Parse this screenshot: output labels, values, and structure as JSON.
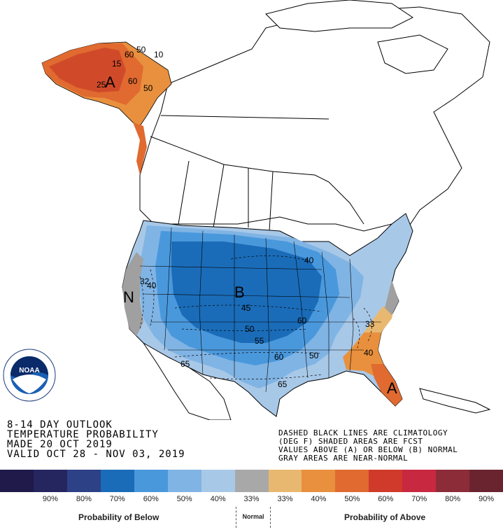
{
  "map": {
    "above_label": "A",
    "below_label": "B",
    "normal_label": "N",
    "colors": {
      "above_33": "#e8b870",
      "above_40": "#e8903e",
      "above_50": "#e06a30",
      "above_60": "#d04a2a",
      "below_33": "#a8c8e8",
      "below_40": "#80b4e4",
      "below_50": "#4a98dc",
      "below_60": "#1a6cb8",
      "normal": "#a0a0a0",
      "land": "#ffffff",
      "borders": "#000000"
    },
    "contour_labels": {
      "ak_50a": "50",
      "ak_50b": "50",
      "ak_60a": "60",
      "ak_60b": "60",
      "ak_15": "15",
      "ak_25": "25",
      "ak_10": "10",
      "west_32": "32",
      "west_40": "40",
      "plains_45": "45",
      "plains_50": "50",
      "plains_55": "55",
      "plains_60": "60",
      "se_60": "60",
      "se_50": "50",
      "se_40": "40",
      "se_33": "33",
      "tx_65": "65",
      "sw_65": "65",
      "gl_40": "40",
      "sw_60": "60"
    }
  },
  "logo": {
    "text": "NOAA",
    "ring_text": "NATIONAL OCEANIC AND ATMOSPHERIC ADMINISTRATION · U.S. DEPARTMENT OF COMMERCE"
  },
  "title": {
    "line1": "8-14 DAY OUTLOOK",
    "line2": "TEMPERATURE PROBABILITY",
    "line3": "MADE  20 OCT 2019",
    "line4": "VALID  OCT 28 - NOV 03, 2019"
  },
  "notes": {
    "line1": "DASHED BLACK LINES ARE CLIMATOLOGY",
    "line2": "(DEG F) SHADED AREAS ARE FCST",
    "line3": "VALUES ABOVE (A) OR BELOW (B) NORMAL",
    "line4": "GRAY AREAS ARE NEAR-NORMAL"
  },
  "legend": {
    "swatches": [
      "#1f1a4a",
      "#252660",
      "#2d4186",
      "#1a6cb8",
      "#4a98dc",
      "#80b4e4",
      "#a8c8e8",
      "#a8a8a8",
      "#e8b870",
      "#e8903e",
      "#e06a30",
      "#d03a2a",
      "#c82840",
      "#8c2c38",
      "#6a2430"
    ],
    "labels": [
      "",
      "90%",
      "80%",
      "70%",
      "60%",
      "50%",
      "40%",
      "33%",
      "33%",
      "40%",
      "50%",
      "60%",
      "70%",
      "80%",
      "90%"
    ],
    "below_caption": "Probability of Below",
    "normal_caption": "Normal",
    "above_caption": "Probability of Above"
  }
}
